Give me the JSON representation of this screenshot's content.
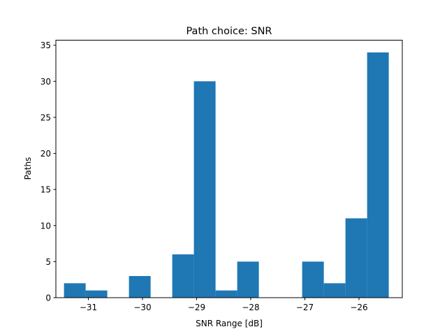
{
  "chart_data": {
    "type": "bar",
    "title": "Path choice: SNR",
    "xlabel": "SNR Range [dB]",
    "ylabel": "Paths",
    "bar_color": "#1f77b4",
    "xlim": [
      -31.6,
      -25.2
    ],
    "ylim": [
      0,
      35.7
    ],
    "bin_width": 0.4,
    "bins": [
      {
        "x0": -31.45,
        "x1": -31.05,
        "count": 2
      },
      {
        "x0": -31.05,
        "x1": -30.65,
        "count": 1
      },
      {
        "x0": -30.25,
        "x1": -29.85,
        "count": 3
      },
      {
        "x0": -29.45,
        "x1": -29.05,
        "count": 6
      },
      {
        "x0": -29.05,
        "x1": -28.65,
        "count": 30
      },
      {
        "x0": -28.65,
        "x1": -28.25,
        "count": 1
      },
      {
        "x0": -28.25,
        "x1": -27.85,
        "count": 5
      },
      {
        "x0": -27.05,
        "x1": -26.65,
        "count": 5
      },
      {
        "x0": -26.65,
        "x1": -26.25,
        "count": 2
      },
      {
        "x0": -26.25,
        "x1": -25.85,
        "count": 11
      },
      {
        "x0": -25.85,
        "x1": -25.45,
        "count": 34
      }
    ],
    "xticks": [
      {
        "value": -31,
        "label": "−31"
      },
      {
        "value": -30,
        "label": "−30"
      },
      {
        "value": -29,
        "label": "−29"
      },
      {
        "value": -28,
        "label": "−28"
      },
      {
        "value": -27,
        "label": "−27"
      },
      {
        "value": -26,
        "label": "−26"
      }
    ],
    "yticks": [
      {
        "value": 0,
        "label": "0"
      },
      {
        "value": 5,
        "label": "5"
      },
      {
        "value": 10,
        "label": "10"
      },
      {
        "value": 15,
        "label": "15"
      },
      {
        "value": 20,
        "label": "20"
      },
      {
        "value": 25,
        "label": "25"
      },
      {
        "value": 30,
        "label": "30"
      },
      {
        "value": 35,
        "label": "35"
      }
    ],
    "grid": false,
    "legend": "none"
  }
}
